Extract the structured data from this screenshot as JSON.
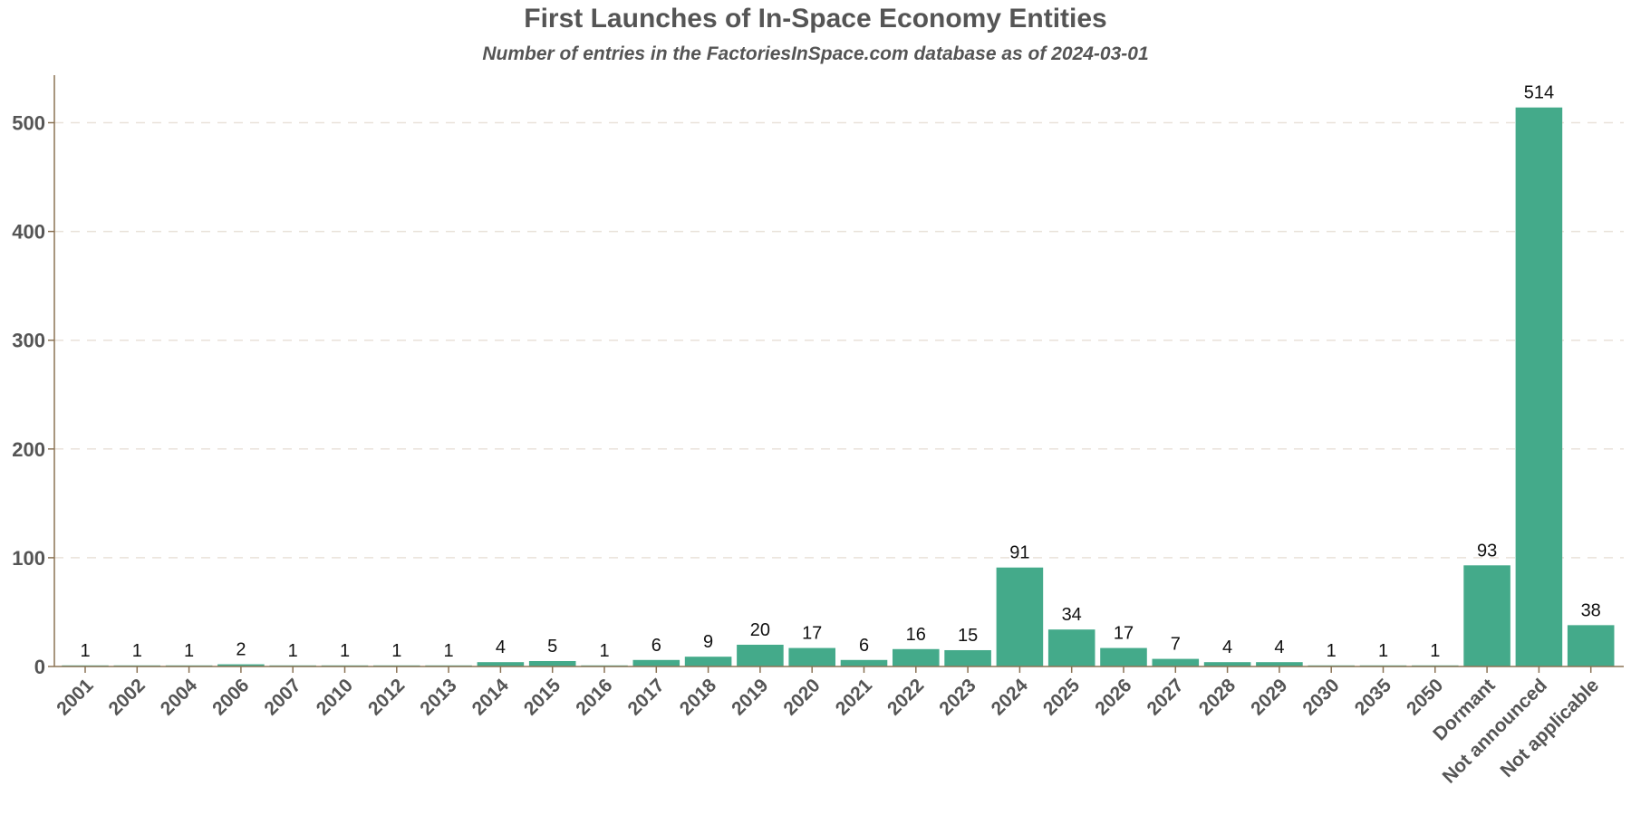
{
  "chart_data": {
    "type": "bar",
    "title": "First Launches of In-Space Economy Entities",
    "subtitle": "Number of entries in the FactoriesInSpace.com database as of 2024-03-01",
    "xlabel": "",
    "ylabel": "",
    "categories": [
      "2001",
      "2002",
      "2004",
      "2006",
      "2007",
      "2010",
      "2012",
      "2013",
      "2014",
      "2015",
      "2016",
      "2017",
      "2018",
      "2019",
      "2020",
      "2021",
      "2022",
      "2023",
      "2024",
      "2025",
      "2026",
      "2027",
      "2028",
      "2029",
      "2030",
      "2035",
      "2050",
      "Dormant",
      "Not announced",
      "Not applicable"
    ],
    "values": [
      1,
      1,
      1,
      2,
      1,
      1,
      1,
      1,
      4,
      5,
      1,
      6,
      9,
      20,
      17,
      6,
      16,
      15,
      91,
      34,
      17,
      7,
      4,
      4,
      1,
      1,
      1,
      93,
      514,
      38
    ],
    "ylim": [
      0,
      545
    ],
    "yticks": [
      0,
      100,
      200,
      300,
      400,
      500
    ],
    "grid": "horizontal dashed",
    "legend": "none",
    "colors": {
      "bar": "#44aa8a",
      "axis": "#8b7355",
      "grid": "#e9e2da",
      "text": "#555555",
      "label": "#111111"
    }
  }
}
